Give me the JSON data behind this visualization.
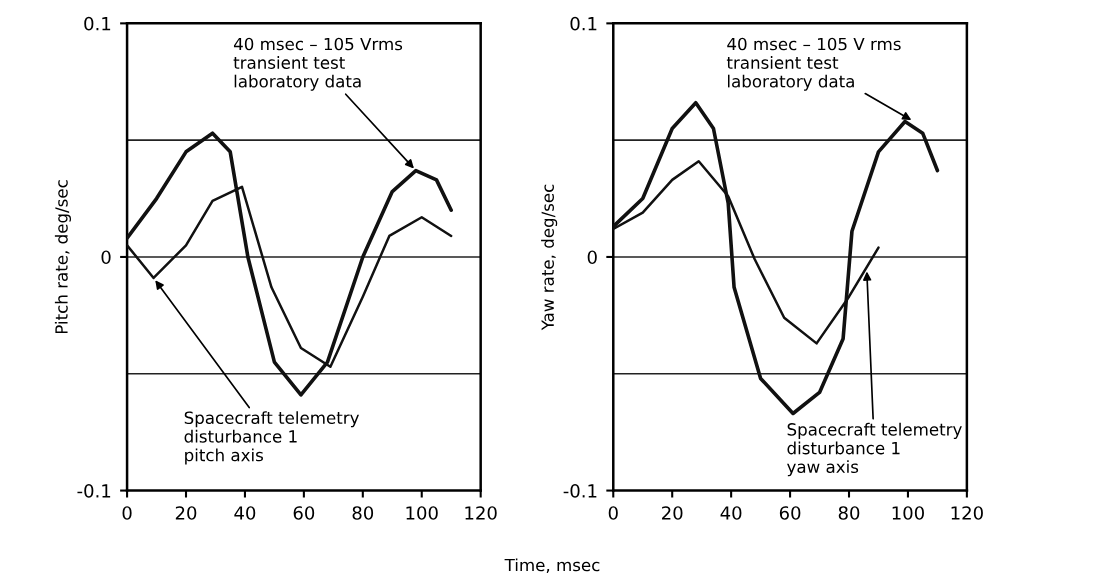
{
  "chart_data": [
    {
      "type": "line",
      "ylabel": "Pitch rate, deg/sec",
      "xlabel": "Time, msec",
      "xlim": [
        0,
        120
      ],
      "xticks": [
        0,
        20,
        40,
        60,
        80,
        100,
        120
      ],
      "ylim": [
        -0.1,
        0.1
      ],
      "yticks": [
        -0.1,
        0,
        0.1
      ],
      "ref_lines": [
        {
          "axis": "y",
          "value": 0.05
        },
        {
          "axis": "y",
          "value": 0
        },
        {
          "axis": "y",
          "value": -0.05
        }
      ],
      "series": [
        {
          "color": "#111111",
          "x": [
            0,
            10,
            20,
            29,
            35,
            41,
            50,
            59,
            68,
            80,
            90,
            98,
            105,
            110
          ],
          "values": [
            0.008,
            0.025,
            0.045,
            0.053,
            0.045,
            0.0,
            -0.045,
            -0.059,
            -0.045,
            0.0,
            0.028,
            0.037,
            0.033,
            0.02
          ]
        },
        {
          "color": "#111111",
          "x": [
            0,
            9,
            20,
            29,
            39,
            49,
            59,
            69,
            80,
            89,
            100,
            110
          ],
          "values": [
            0.005,
            -0.009,
            0.005,
            0.024,
            0.03,
            -0.013,
            -0.039,
            -0.047,
            -0.017,
            0.009,
            0.017,
            0.009
          ]
        }
      ],
      "annotations": [
        {
          "text": "40 msec – 105 Vrms\ntransient test\nlaboratory data",
          "x": 98,
          "y": 0.037
        },
        {
          "text": "Spacecraft telemetry\ndisturbance 1\npitch axis",
          "x": 9,
          "y": -0.009
        }
      ]
    },
    {
      "type": "line",
      "ylabel": "Yaw rate, deg/sec",
      "xlim": [
        0,
        120
      ],
      "xticks": [
        0,
        20,
        40,
        60,
        80,
        100,
        120
      ],
      "ylim": [
        -0.1,
        0.1
      ],
      "yticks": [
        -0.1,
        0,
        0.1
      ],
      "ref_lines": [
        {
          "axis": "y",
          "value": 0.05
        },
        {
          "axis": "y",
          "value": 0
        },
        {
          "axis": "y",
          "value": -0.05
        }
      ],
      "series": [
        {
          "color": "#111111",
          "x": [
            0,
            10,
            20,
            28,
            34,
            39,
            41,
            50,
            61,
            70,
            78,
            81,
            90,
            99,
            105,
            110
          ],
          "values": [
            0.013,
            0.025,
            0.055,
            0.066,
            0.055,
            0.023,
            -0.013,
            -0.052,
            -0.067,
            -0.058,
            -0.035,
            0.011,
            0.045,
            0.058,
            0.053,
            0.037
          ]
        },
        {
          "color": "#111111",
          "x": [
            0,
            10,
            20,
            29,
            39,
            48,
            58,
            69,
            80,
            90
          ],
          "values": [
            0.012,
            0.019,
            0.033,
            0.041,
            0.026,
            -0.001,
            -0.026,
            -0.037,
            -0.017,
            0.004
          ]
        }
      ],
      "annotations": [
        {
          "text": "40 msec – 105 V rms\ntransient test\nlaboratory data",
          "x": 102,
          "y": 0.058
        },
        {
          "text": "Spacecraft telemetry\ndisturbance 1\nyaw axis",
          "x": 86,
          "y": -0.005
        }
      ]
    }
  ]
}
